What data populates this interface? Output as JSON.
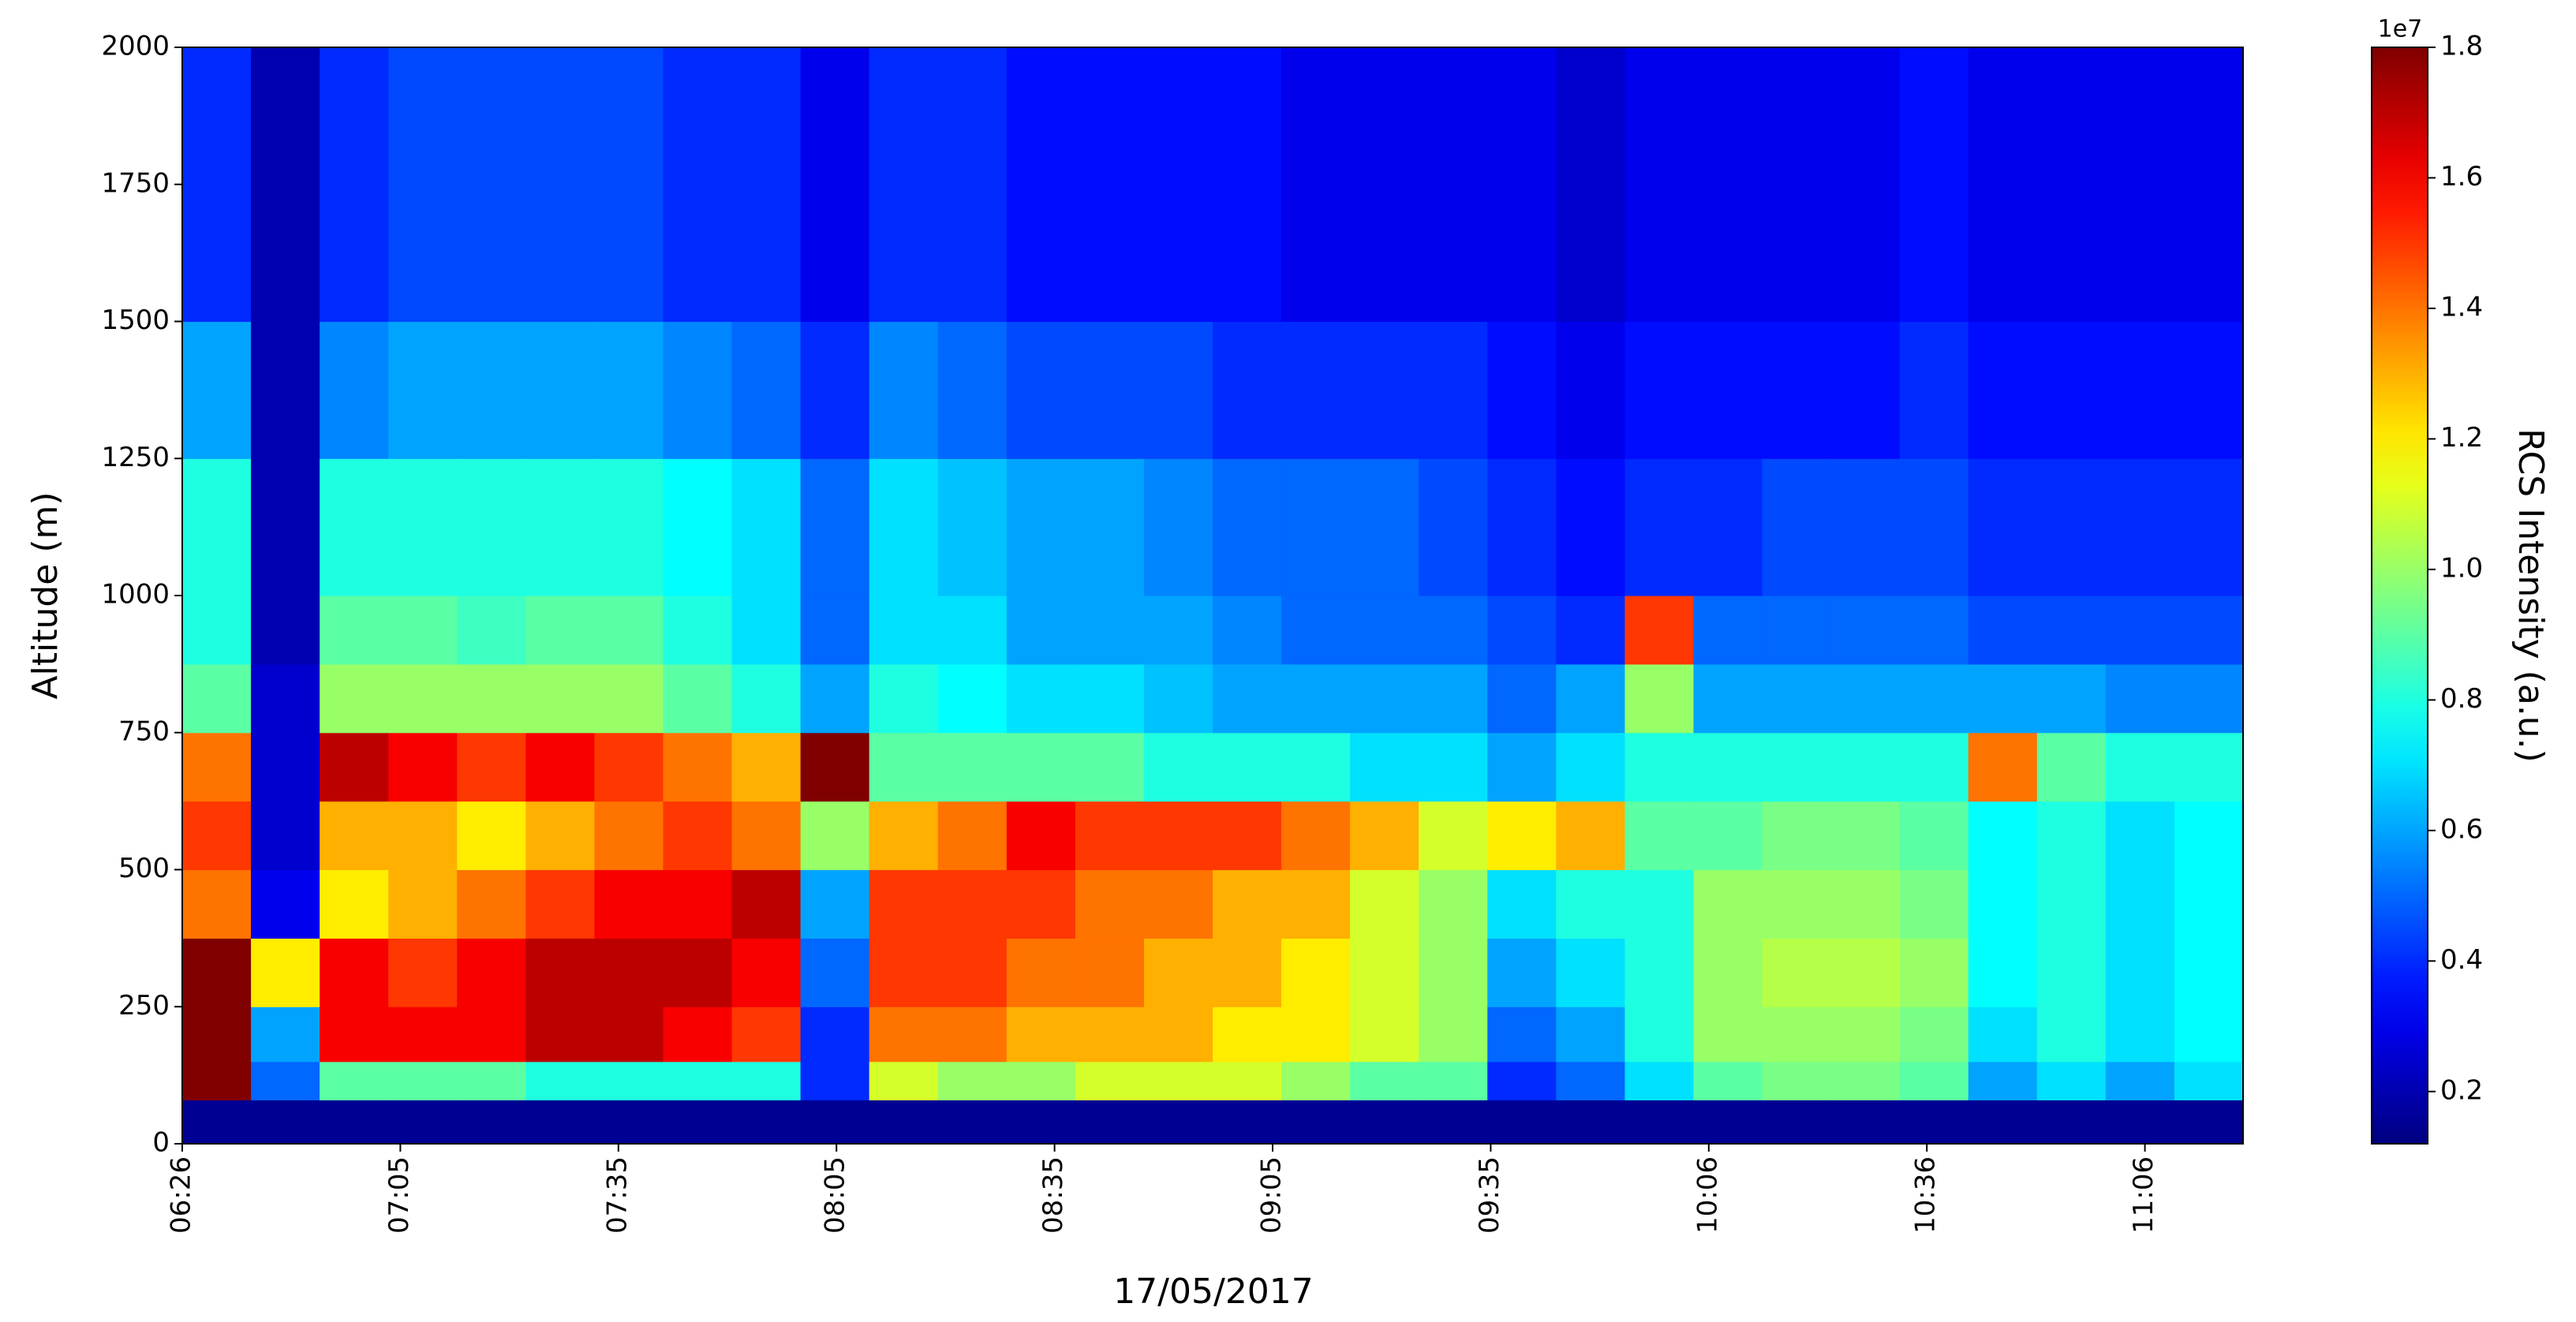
{
  "chart_data": {
    "type": "heatmap",
    "xlabel": "17/05/2017",
    "ylabel": "Altitude (m)",
    "colorbar_label": "RCS Intensity (a.u.)",
    "colorbar_offset": "1e7",
    "colormap": "jet",
    "xlim": [
      0,
      9.45
    ],
    "xticks": [
      {
        "value": 0,
        "label": "06:26"
      },
      {
        "value": 1,
        "label": "07:05"
      },
      {
        "value": 2,
        "label": "07:35"
      },
      {
        "value": 3,
        "label": "08:05"
      },
      {
        "value": 4,
        "label": "08:35"
      },
      {
        "value": 5,
        "label": "09:05"
      },
      {
        "value": 6,
        "label": "09:35"
      },
      {
        "value": 7,
        "label": "10:06"
      },
      {
        "value": 8,
        "label": "10:36"
      },
      {
        "value": 9,
        "label": "11:06"
      }
    ],
    "ylim": [
      0,
      2000
    ],
    "yticks": [
      0,
      250,
      500,
      750,
      1000,
      1250,
      1500,
      1750,
      2000
    ],
    "clim": [
      0.12,
      1.8
    ],
    "cticks": [
      0.2,
      0.4,
      0.6,
      0.8,
      {
        "value": 1,
        "label": "1.0"
      },
      1.2,
      1.4,
      1.6,
      1.8
    ],
    "x_edges": [
      0,
      0.315,
      0.63,
      0.945,
      1.26,
      1.575,
      1.89,
      2.205,
      2.52,
      2.835,
      3.15,
      3.465,
      3.78,
      4.095,
      4.41,
      4.725,
      5.04,
      5.355,
      5.67,
      5.985,
      6.3,
      6.615,
      6.93,
      7.245,
      7.56,
      7.875,
      8.19,
      8.505,
      8.82,
      9.135,
      9.45
    ],
    "y_edges": [
      0,
      80,
      150,
      250,
      375,
      500,
      625,
      750,
      875,
      1000,
      1250,
      1500,
      2000
    ],
    "z": [
      [
        0.15,
        1.8,
        1.8,
        1.8,
        1.4,
        1.5,
        1.4,
        0.9,
        0.8,
        0.8,
        0.6,
        0.4
      ],
      [
        0.15,
        0.5,
        0.6,
        1.2,
        0.3,
        0.25,
        0.25,
        0.25,
        0.2,
        0.2,
        0.2,
        0.2
      ],
      [
        0.15,
        0.9,
        1.6,
        1.6,
        1.2,
        1.3,
        1.7,
        1.0,
        0.9,
        0.8,
        0.55,
        0.4
      ],
      [
        0.15,
        0.9,
        1.6,
        1.5,
        1.3,
        1.3,
        1.6,
        1.0,
        0.9,
        0.8,
        0.6,
        0.45
      ],
      [
        0.15,
        0.9,
        1.6,
        1.6,
        1.4,
        1.2,
        1.5,
        1.0,
        0.85,
        0.8,
        0.6,
        0.45
      ],
      [
        0.15,
        0.8,
        1.7,
        1.7,
        1.5,
        1.3,
        1.6,
        1.0,
        0.9,
        0.8,
        0.6,
        0.45
      ],
      [
        0.15,
        0.8,
        1.7,
        1.7,
        1.6,
        1.4,
        1.5,
        1.0,
        0.9,
        0.8,
        0.6,
        0.45
      ],
      [
        0.15,
        0.8,
        1.6,
        1.7,
        1.6,
        1.5,
        1.4,
        0.9,
        0.8,
        0.75,
        0.55,
        0.4
      ],
      [
        0.15,
        0.8,
        1.5,
        1.6,
        1.7,
        1.4,
        1.3,
        0.8,
        0.7,
        0.7,
        0.5,
        0.4
      ],
      [
        0.15,
        0.4,
        0.4,
        0.5,
        0.6,
        1.0,
        1.8,
        0.6,
        0.5,
        0.5,
        0.4,
        0.3
      ],
      [
        0.15,
        1.1,
        1.4,
        1.5,
        1.5,
        1.3,
        0.9,
        0.8,
        0.7,
        0.7,
        0.55,
        0.4
      ],
      [
        0.15,
        1.0,
        1.4,
        1.5,
        1.5,
        1.4,
        0.9,
        0.75,
        0.7,
        0.65,
        0.5,
        0.4
      ],
      [
        0.15,
        1.0,
        1.3,
        1.4,
        1.5,
        1.6,
        0.9,
        0.7,
        0.6,
        0.6,
        0.45,
        0.35
      ],
      [
        0.15,
        1.1,
        1.3,
        1.4,
        1.4,
        1.5,
        0.9,
        0.7,
        0.6,
        0.6,
        0.45,
        0.35
      ],
      [
        0.15,
        1.1,
        1.3,
        1.3,
        1.4,
        1.5,
        0.8,
        0.65,
        0.6,
        0.55,
        0.45,
        0.35
      ],
      [
        0.15,
        1.1,
        1.2,
        1.3,
        1.3,
        1.5,
        0.8,
        0.6,
        0.55,
        0.5,
        0.4,
        0.35
      ],
      [
        0.15,
        1.0,
        1.2,
        1.2,
        1.3,
        1.4,
        0.8,
        0.6,
        0.5,
        0.5,
        0.4,
        0.3
      ],
      [
        0.15,
        0.9,
        1.1,
        1.1,
        1.1,
        1.3,
        0.7,
        0.6,
        0.5,
        0.5,
        0.4,
        0.3
      ],
      [
        0.15,
        0.9,
        1.0,
        1.0,
        1.0,
        1.1,
        0.7,
        0.6,
        0.5,
        0.45,
        0.4,
        0.3
      ],
      [
        0.15,
        0.4,
        0.5,
        0.6,
        0.7,
        1.2,
        0.6,
        0.5,
        0.45,
        0.4,
        0.35,
        0.3
      ],
      [
        0.15,
        0.5,
        0.6,
        0.7,
        0.8,
        1.3,
        0.7,
        0.6,
        0.4,
        0.35,
        0.3,
        0.25
      ],
      [
        0.15,
        0.7,
        0.8,
        0.8,
        0.8,
        0.9,
        0.8,
        1.0,
        1.5,
        0.4,
        0.35,
        0.3
      ],
      [
        0.15,
        0.9,
        1.0,
        1.0,
        1.0,
        0.9,
        0.8,
        0.6,
        0.5,
        0.4,
        0.35,
        0.3
      ],
      [
        0.15,
        0.95,
        1.0,
        1.05,
        1.0,
        0.95,
        0.8,
        0.6,
        0.5,
        0.45,
        0.35,
        0.3
      ],
      [
        0.15,
        0.95,
        1.0,
        1.05,
        1.0,
        0.95,
        0.8,
        0.6,
        0.5,
        0.45,
        0.35,
        0.3
      ],
      [
        0.15,
        0.9,
        0.95,
        1.0,
        0.95,
        0.9,
        0.8,
        0.6,
        0.5,
        0.45,
        0.4,
        0.35
      ],
      [
        0.15,
        0.6,
        0.7,
        0.75,
        0.75,
        0.75,
        1.4,
        0.6,
        0.45,
        0.4,
        0.35,
        0.3
      ],
      [
        0.15,
        0.7,
        0.8,
        0.8,
        0.8,
        0.8,
        0.9,
        0.6,
        0.45,
        0.4,
        0.35,
        0.3
      ],
      [
        0.15,
        0.6,
        0.7,
        0.7,
        0.7,
        0.7,
        0.8,
        0.55,
        0.45,
        0.4,
        0.35,
        0.3
      ],
      [
        0.15,
        0.7,
        0.75,
        0.75,
        0.75,
        0.75,
        0.8,
        0.55,
        0.45,
        0.4,
        0.35,
        0.3
      ]
    ]
  }
}
